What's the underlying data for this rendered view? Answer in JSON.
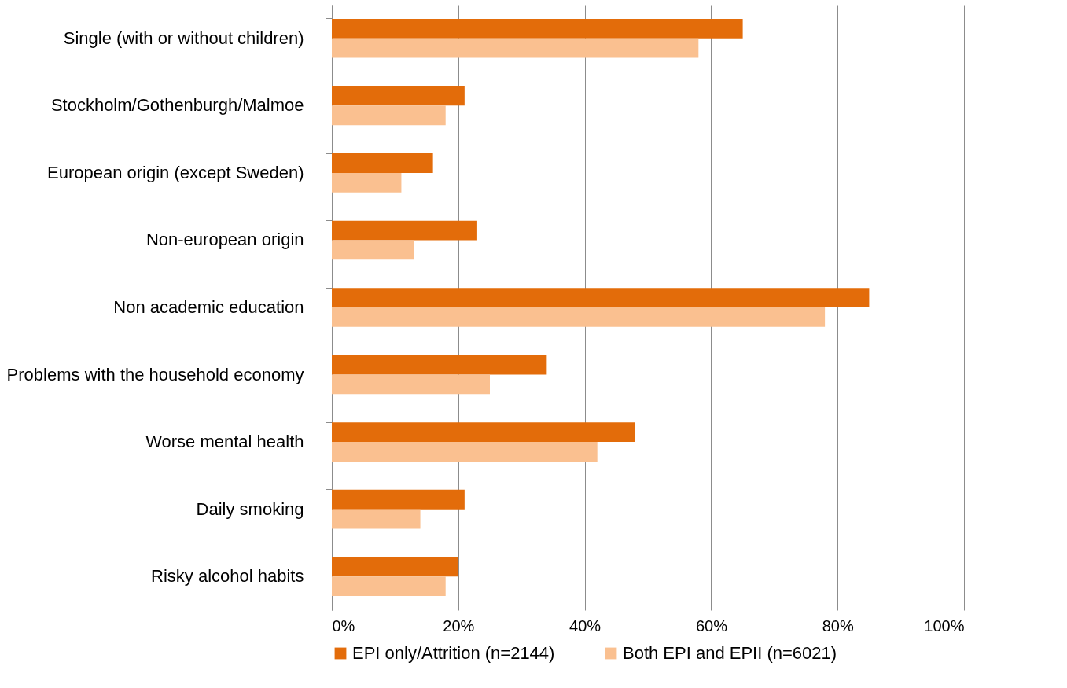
{
  "chart_data": {
    "type": "bar",
    "orientation": "horizontal",
    "categories": [
      "Single (with or without children)",
      "Stockholm/Gothenburgh/Malmoe",
      "European origin (except Sweden)",
      "Non-european origin",
      "Non academic education",
      "Problems with the household economy",
      "Worse mental health",
      "Daily smoking",
      "Risky alcohol habits"
    ],
    "series": [
      {
        "name": "EPI only/Attrition (n=2144)",
        "color": "#e36c0a",
        "values": [
          65,
          21,
          16,
          23,
          85,
          34,
          48,
          21,
          20
        ]
      },
      {
        "name": "Both EPI and EPII (n=6021)",
        "color": "#fac090",
        "values": [
          58,
          18,
          11,
          13,
          78,
          25,
          42,
          14,
          18
        ]
      }
    ],
    "xlim": [
      0,
      100
    ],
    "xticks": [
      {
        "value": 0,
        "label": "0%"
      },
      {
        "value": 20,
        "label": "20%"
      },
      {
        "value": 40,
        "label": "40%"
      },
      {
        "value": 60,
        "label": "60%"
      },
      {
        "value": 80,
        "label": "80%"
      },
      {
        "value": 100,
        "label": "100%"
      }
    ],
    "grid": "x",
    "legend": "bottom"
  }
}
